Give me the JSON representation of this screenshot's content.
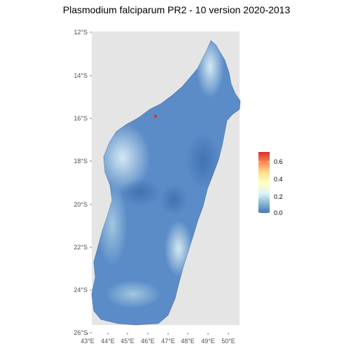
{
  "title": "Plasmodium falciparum PR2 - 10 version 2020-2013",
  "map": {
    "x_axis": {
      "ticks": [
        "43°E",
        "44°E",
        "45°E",
        "46°E",
        "47°E",
        "48°E",
        "49°E",
        "50°E"
      ]
    },
    "y_axis": {
      "ticks": [
        "12°S",
        "14°S",
        "16°S",
        "18°S",
        "20°S",
        "22°S",
        "24°S",
        "26°S"
      ]
    },
    "panel_background": "#e5e5e5",
    "land_base_color": "#5b8cc7",
    "region": "Madagascar"
  },
  "legend": {
    "ticks": [
      "0.6",
      "0.4",
      "0.2",
      "0.0"
    ],
    "range": [
      0.0,
      0.7
    ],
    "colors": [
      "#4575b4",
      "#91bfdb",
      "#e0f3f8",
      "#ffffbf",
      "#fee090",
      "#fc8d59",
      "#d73027"
    ]
  }
}
